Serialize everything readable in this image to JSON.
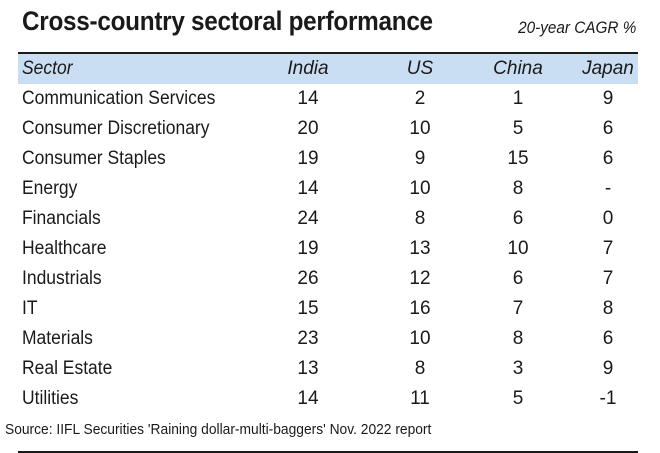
{
  "title": "Cross-country sectoral performance",
  "subtitle": "20-year CAGR %",
  "source": "Source: IIFL Securities 'Raining dollar-multi-baggers' Nov. 2022 report",
  "chart_data": {
    "type": "table",
    "columns": [
      "Sector",
      "India",
      "US",
      "China",
      "Japan"
    ],
    "rows": [
      [
        "Communication Services",
        "14",
        "2",
        "1",
        "9"
      ],
      [
        "Consumer Discretionary",
        "20",
        "10",
        "5",
        "6"
      ],
      [
        "Consumer Staples",
        "19",
        "9",
        "15",
        "6"
      ],
      [
        "Energy",
        "14",
        "10",
        "8",
        "-"
      ],
      [
        "Financials",
        "24",
        "8",
        "6",
        "0"
      ],
      [
        "Healthcare",
        "19",
        "13",
        "10",
        "7"
      ],
      [
        "Industrials",
        "26",
        "12",
        "6",
        "7"
      ],
      [
        "IT",
        "15",
        "16",
        "7",
        "8"
      ],
      [
        "Materials",
        "23",
        "10",
        "8",
        "6"
      ],
      [
        "Real Estate",
        "13",
        "8",
        "3",
        "9"
      ],
      [
        "Utilities",
        "14",
        "11",
        "5",
        "-1"
      ]
    ]
  },
  "colors": {
    "header_bg": "#c9ddf3",
    "text": "#1a1a1a"
  }
}
